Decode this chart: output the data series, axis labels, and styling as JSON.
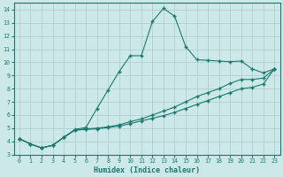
{
  "xlabel": "Humidex (Indice chaleur)",
  "bg_color": "#cce8e8",
  "line_color": "#1a7a6e",
  "grid_color": "#aacccc",
  "xlim": [
    -0.5,
    23.5
  ],
  "ylim": [
    3,
    14.5
  ],
  "xticks": [
    0,
    1,
    2,
    3,
    4,
    5,
    6,
    7,
    8,
    9,
    10,
    11,
    12,
    13,
    14,
    15,
    16,
    17,
    18,
    19,
    20,
    21,
    22,
    23
  ],
  "yticks": [
    3,
    4,
    5,
    6,
    7,
    8,
    9,
    10,
    11,
    12,
    13,
    14
  ],
  "line1_x": [
    0,
    1,
    2,
    3,
    4,
    5,
    6,
    7,
    8,
    9,
    10,
    11,
    12,
    13,
    14,
    15,
    16,
    17,
    18,
    19,
    20,
    21,
    22,
    23
  ],
  "line1_y": [
    4.2,
    3.8,
    3.5,
    3.7,
    4.3,
    4.9,
    5.05,
    6.5,
    7.9,
    9.3,
    10.5,
    10.5,
    13.1,
    14.1,
    13.5,
    11.2,
    10.2,
    10.15,
    10.1,
    10.05,
    10.1,
    9.5,
    9.2,
    9.5
  ],
  "line2_x": [
    0,
    1,
    2,
    3,
    4,
    5,
    6,
    7,
    8,
    9,
    10,
    11,
    12,
    13,
    14,
    15,
    16,
    17,
    18,
    19,
    20,
    21,
    22,
    23
  ],
  "line2_y": [
    4.2,
    3.8,
    3.5,
    3.7,
    4.3,
    4.85,
    4.95,
    5.0,
    5.1,
    5.25,
    5.5,
    5.7,
    6.0,
    6.3,
    6.6,
    7.0,
    7.4,
    7.7,
    8.0,
    8.4,
    8.7,
    8.7,
    8.8,
    9.5
  ],
  "line3_x": [
    0,
    1,
    2,
    3,
    4,
    5,
    6,
    7,
    8,
    9,
    10,
    11,
    12,
    13,
    14,
    15,
    16,
    17,
    18,
    19,
    20,
    21,
    22,
    23
  ],
  "line3_y": [
    4.2,
    3.8,
    3.5,
    3.7,
    4.3,
    4.85,
    4.9,
    4.95,
    5.05,
    5.15,
    5.35,
    5.55,
    5.75,
    5.95,
    6.2,
    6.5,
    6.8,
    7.1,
    7.4,
    7.7,
    8.0,
    8.1,
    8.35,
    9.5
  ]
}
